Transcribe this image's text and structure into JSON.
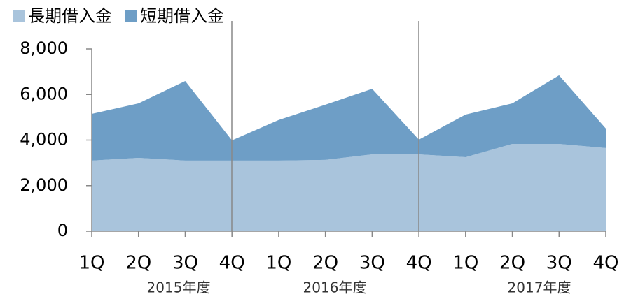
{
  "chart_data": {
    "type": "area",
    "stacked": true,
    "categories": [
      "1Q",
      "2Q",
      "3Q",
      "4Q",
      "1Q",
      "2Q",
      "3Q",
      "4Q",
      "1Q",
      "2Q",
      "3Q",
      "4Q"
    ],
    "groups": [
      "2015年度",
      "2016年度",
      "2017年度"
    ],
    "series": [
      {
        "name": "長期借入金",
        "color": "#a9c4dc",
        "values": [
          3100,
          3220,
          3100,
          3100,
          3100,
          3130,
          3370,
          3370,
          3250,
          3830,
          3830,
          3650
        ]
      },
      {
        "name": "短期借入金",
        "color": "#6e9ec6",
        "values": [
          2050,
          2390,
          3490,
          890,
          1780,
          2420,
          2880,
          650,
          1870,
          1780,
          3010,
          860
        ]
      }
    ],
    "ylim": [
      0,
      8000
    ],
    "yticks": [
      0,
      {
        "value": 2000,
        "label": "2,000"
      },
      {
        "value": 4000,
        "label": "4,000"
      },
      {
        "value": 6000,
        "label": "6,000"
      },
      {
        "value": 8000,
        "label": "8,000"
      }
    ],
    "legend": "top-left"
  }
}
